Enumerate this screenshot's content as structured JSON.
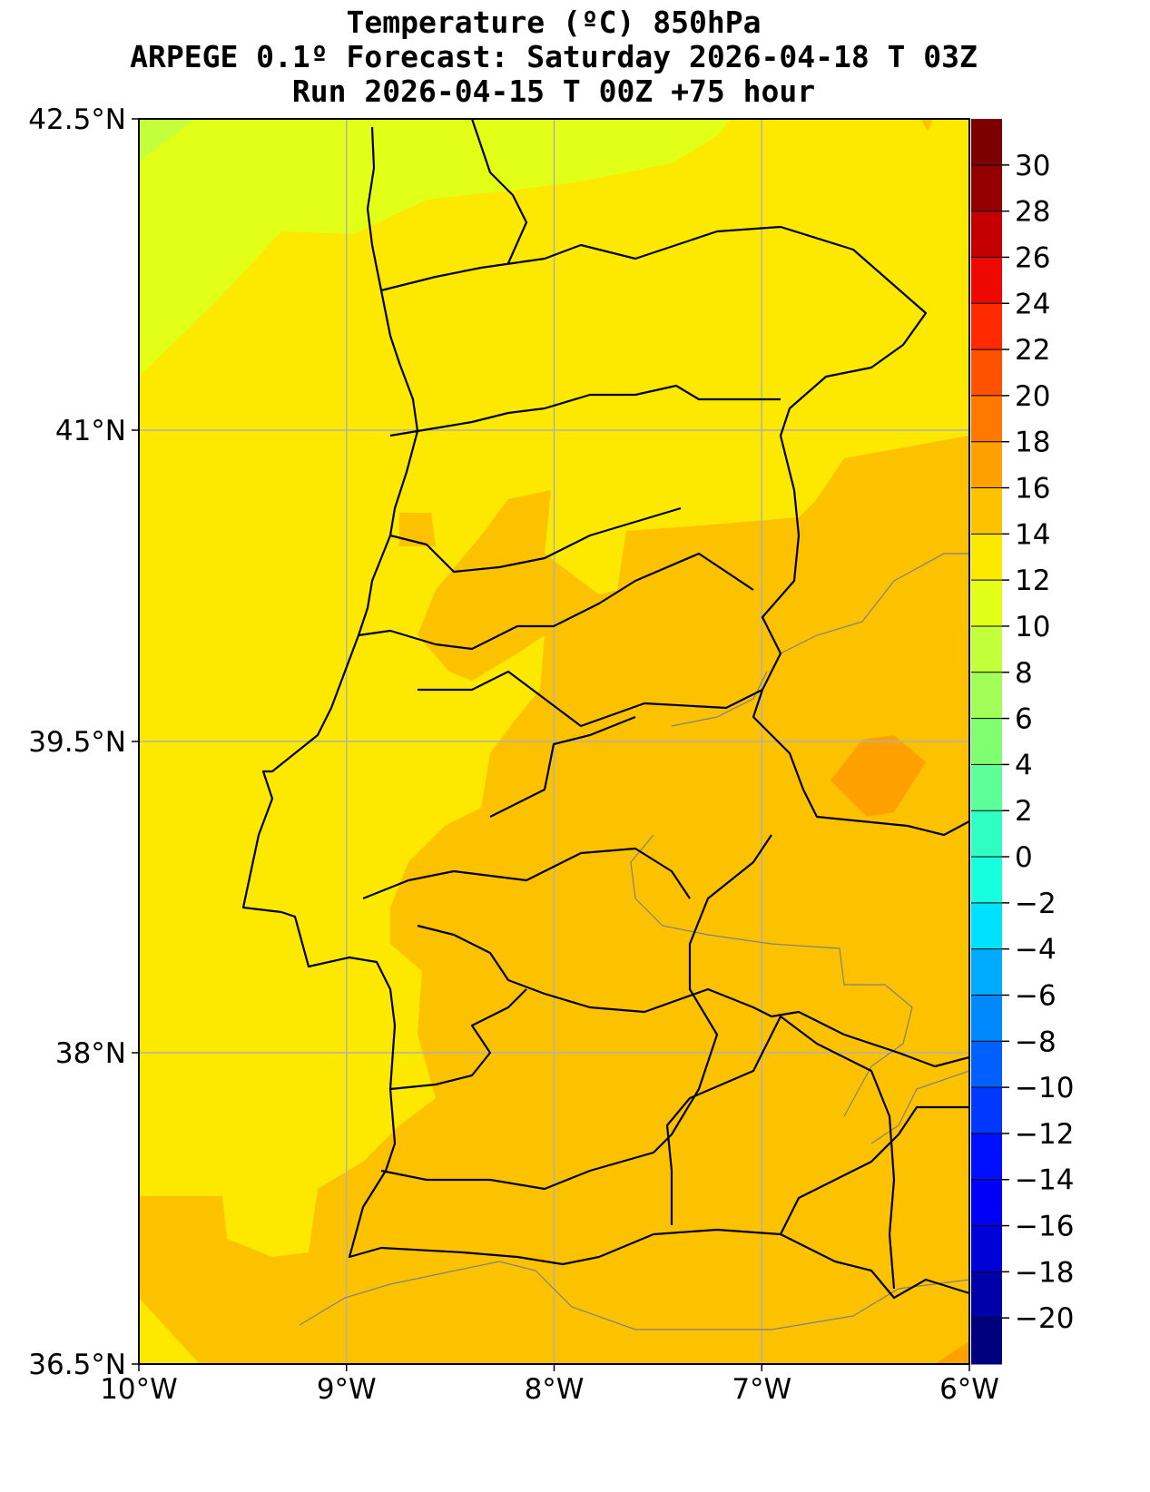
{
  "chart_data": {
    "type": "heatmap",
    "subtype": "filled-contour-map",
    "title": [
      "Temperature (ºC) 850hPa",
      "ARPEGE 0.1º Forecast: Saturday 2026-04-18 T 03Z",
      "Run 2026-04-15 T 00Z +75 hour"
    ],
    "variable": "Temperature (ºC)",
    "level": "850hPa",
    "extent": {
      "lon": [
        -10,
        -6
      ],
      "lat": [
        36.5,
        42.5
      ]
    },
    "xticks": [
      {
        "value": -10,
        "label": "10°W"
      },
      {
        "value": -9,
        "label": "9°W"
      },
      {
        "value": -8,
        "label": "8°W"
      },
      {
        "value": -7,
        "label": "7°W"
      },
      {
        "value": -6,
        "label": "6°W"
      }
    ],
    "yticks": [
      {
        "value": 42.5,
        "label": "42.5°N"
      },
      {
        "value": 41,
        "label": "41°N"
      },
      {
        "value": 39.5,
        "label": "39.5°N"
      },
      {
        "value": 38,
        "label": "38°N"
      },
      {
        "value": 36.5,
        "label": "36.5°N"
      }
    ],
    "grid": true,
    "colorbar": {
      "placement": "right",
      "range": [
        -22,
        32
      ],
      "levels": [
        -22,
        -20,
        -18,
        -16,
        -14,
        -12,
        -10,
        -8,
        -6,
        -4,
        -2,
        0,
        2,
        4,
        6,
        8,
        10,
        12,
        14,
        16,
        18,
        20,
        22,
        24,
        26,
        28,
        30,
        32
      ],
      "colors": [
        "#00007f",
        "#0000a8",
        "#0000d8",
        "#0000f8",
        "#0010ff",
        "#0038ff",
        "#0060ff",
        "#0088ff",
        "#00aaff",
        "#00e0ff",
        "#18ffde",
        "#30ffc4",
        "#5cff98",
        "#80ff70",
        "#a2ff58",
        "#c4ff3c",
        "#e2ff18",
        "#fde800",
        "#fcc200",
        "#fea000",
        "#ff7800",
        "#ff5200",
        "#ff2a00",
        "#ee0800",
        "#c40000",
        "#940000",
        "#7c0000"
      ],
      "ticks": [
        {
          "value": 30,
          "label": "30"
        },
        {
          "value": 28,
          "label": "28"
        },
        {
          "value": 26,
          "label": "26"
        },
        {
          "value": 24,
          "label": "24"
        },
        {
          "value": 22,
          "label": "22"
        },
        {
          "value": 20,
          "label": "20"
        },
        {
          "value": 18,
          "label": "18"
        },
        {
          "value": 16,
          "label": "16"
        },
        {
          "value": 14,
          "label": "14"
        },
        {
          "value": 12,
          "label": "12"
        },
        {
          "value": 10,
          "label": "10"
        },
        {
          "value": 8,
          "label": "8"
        },
        {
          "value": 6,
          "label": "6"
        },
        {
          "value": 4,
          "label": "4"
        },
        {
          "value": 2,
          "label": "2"
        },
        {
          "value": 0,
          "label": "0"
        },
        {
          "value": -2,
          "label": "−2"
        },
        {
          "value": -4,
          "label": "−4"
        },
        {
          "value": -6,
          "label": "−6"
        },
        {
          "value": -8,
          "label": "−8"
        },
        {
          "value": -10,
          "label": "−10"
        },
        {
          "value": -12,
          "label": "−12"
        },
        {
          "value": -14,
          "label": "−14"
        },
        {
          "value": -16,
          "label": "−16"
        },
        {
          "value": -18,
          "label": "−18"
        },
        {
          "value": -20,
          "label": "−20"
        }
      ]
    },
    "fields": [
      {
        "range": [
          12,
          14
        ],
        "description": "background over most of western Portugal and the Atlantic"
      },
      {
        "range": [
          10,
          12
        ],
        "description": "northwest Atlantic / Galicia"
      },
      {
        "range": [
          8,
          10
        ],
        "description": "far northwest corner"
      },
      {
        "range": [
          14,
          16
        ],
        "description": "interior and south"
      },
      {
        "range": [
          16,
          18
        ],
        "description": "small patch near 6.5°W 39.3°N"
      }
    ]
  }
}
